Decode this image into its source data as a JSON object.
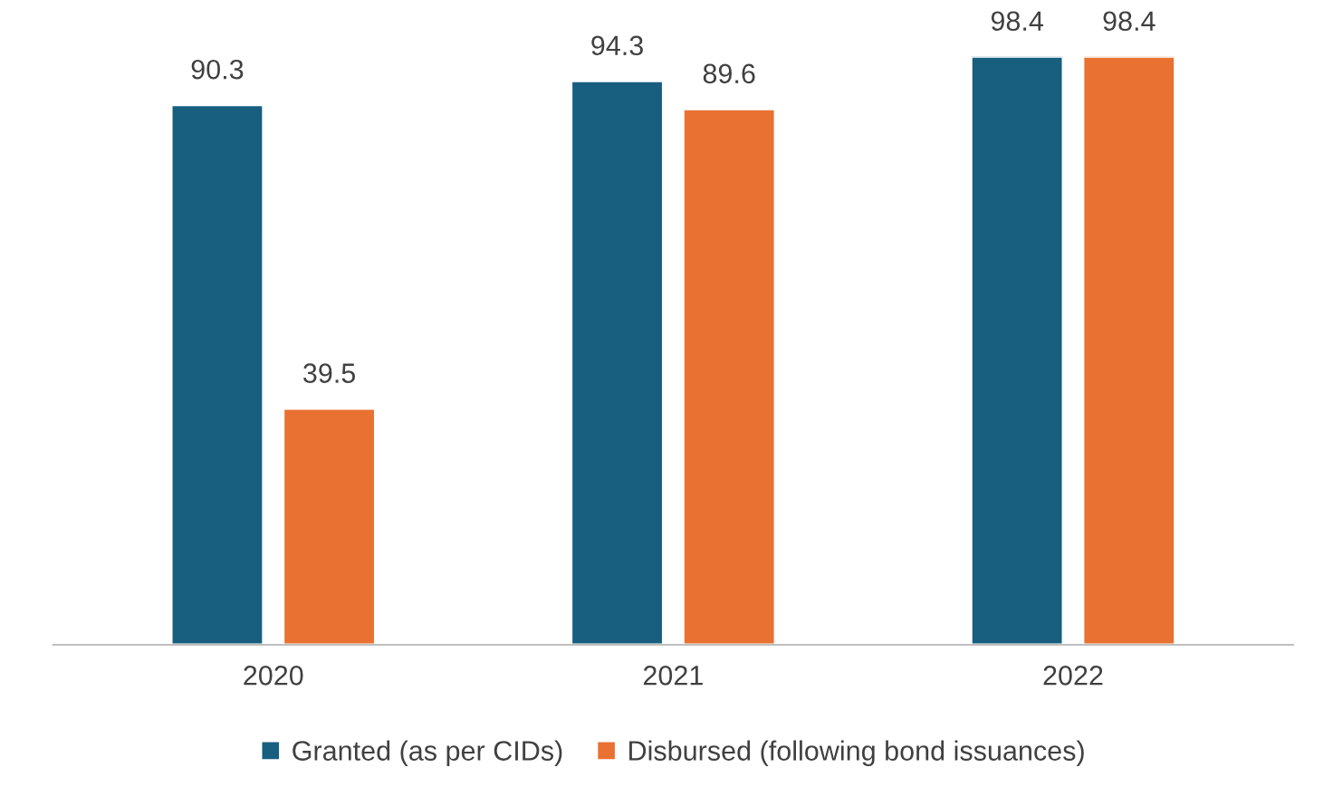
{
  "chart_data": {
    "type": "bar",
    "categories": [
      "2020",
      "2021",
      "2022"
    ],
    "series": [
      {
        "name": "Granted (as per CIDs)",
        "color": "#175e7f",
        "values": [
          90.3,
          94.3,
          98.4
        ]
      },
      {
        "name": "Disbursed (following bond issuances)",
        "color": "#e97132",
        "values": [
          39.5,
          89.6,
          98.4
        ]
      }
    ],
    "data_labels": true,
    "legend": "bottom",
    "grid": false
  }
}
